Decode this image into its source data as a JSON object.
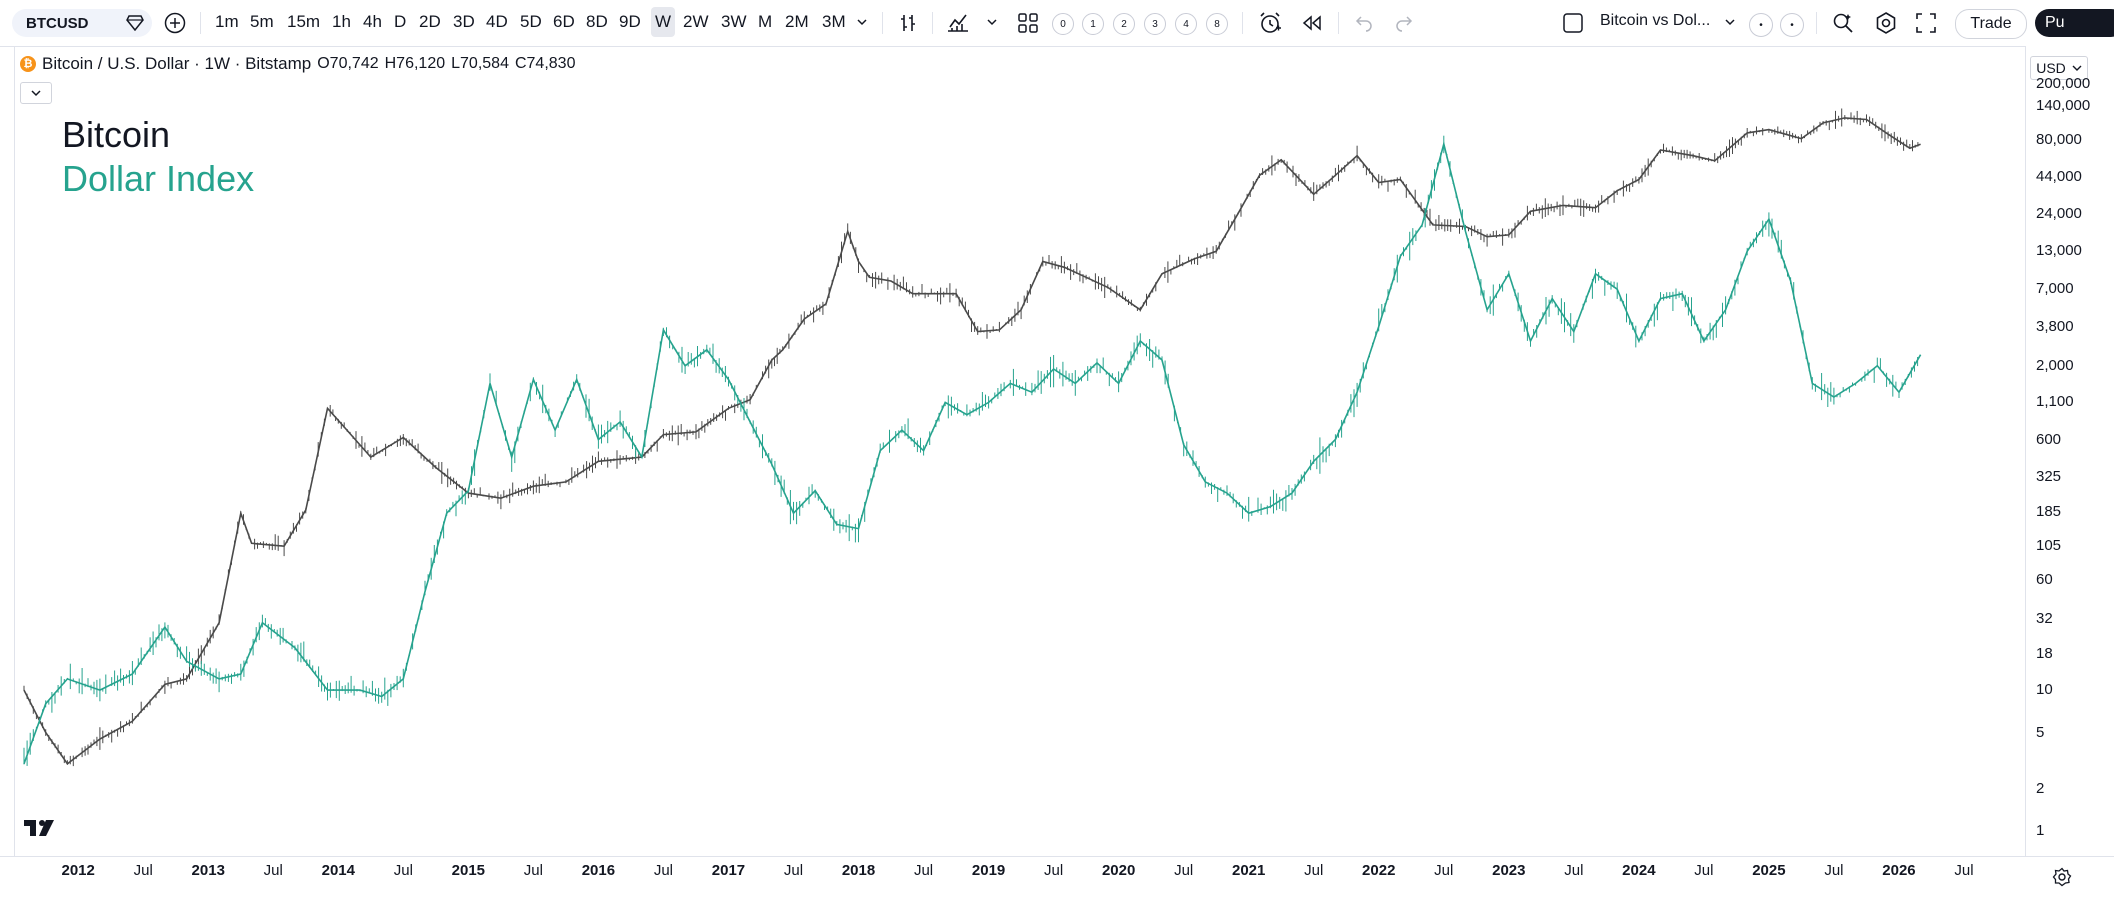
{
  "toolbar": {
    "symbol": "BTCUSD",
    "intervals": [
      "1m",
      "5m",
      "15m",
      "1h",
      "4h",
      "D",
      "2D",
      "3D",
      "4D",
      "5D",
      "6D",
      "8D",
      "9D",
      "W",
      "2W",
      "3W",
      "M",
      "2M",
      "3M"
    ],
    "active_interval": "W",
    "layout_counts": [
      "0",
      "1",
      "2",
      "3",
      "4",
      "8"
    ],
    "layout_name": "Bitcoin vs Dol...",
    "trade_label": "Trade",
    "publish_label": "Pu"
  },
  "legend": {
    "title": "Bitcoin / U.S. Dollar · 1W · Bitstamp",
    "open": "O70,742",
    "high": "H76,120",
    "low": "L70,584",
    "close": "C74,830",
    "logo_letter": "₿"
  },
  "annotations": {
    "btc_label": "Bitcoin",
    "dxy_label": "Dollar Index"
  },
  "currency": "USD",
  "colors": {
    "bitcoin_series": "#4a4a4a",
    "dollar_series": "#26a38e",
    "background": "#ffffff"
  },
  "chart_data": {
    "type": "line",
    "title": "",
    "scale": "log",
    "y_tick_labels": [
      "200,000",
      "140,000",
      "80,000",
      "44,000",
      "24,000",
      "13,000",
      "7,000",
      "3,800",
      "2,000",
      "1,100",
      "600",
      "325",
      "185",
      "105",
      "60",
      "32",
      "18",
      "10",
      "5",
      "2",
      "1"
    ],
    "x_tick_labels": [
      "2012",
      "Jul",
      "2013",
      "Jul",
      "2014",
      "Jul",
      "2015",
      "Jul",
      "2016",
      "Jul",
      "2017",
      "Jul",
      "2018",
      "Jul",
      "2019",
      "Jul",
      "2020",
      "Jul",
      "2021",
      "Jul",
      "2022",
      "Jul",
      "2023",
      "Jul",
      "2024",
      "Jul",
      "2025",
      "Jul",
      "2026",
      "Jul"
    ],
    "x_range": [
      "2011-08",
      "2026-07"
    ],
    "ylim": [
      1,
      200000
    ],
    "series": [
      {
        "name": "Bitcoin",
        "x": [
          "2011-08",
          "2011-10",
          "2011-12",
          "2012-03",
          "2012-06",
          "2012-09",
          "2012-11",
          "2013-02",
          "2013-04",
          "2013-05",
          "2013-08",
          "2013-10",
          "2013-12",
          "2014-01",
          "2014-04",
          "2014-07",
          "2014-10",
          "2015-01",
          "2015-04",
          "2015-07",
          "2015-10",
          "2016-01",
          "2016-05",
          "2016-07",
          "2016-10",
          "2017-01",
          "2017-03",
          "2017-05",
          "2017-06",
          "2017-08",
          "2017-10",
          "2017-12",
          "2018-01",
          "2018-02",
          "2018-04",
          "2018-06",
          "2018-08",
          "2018-10",
          "2018-12",
          "2019-02",
          "2019-04",
          "2019-06",
          "2019-08",
          "2019-10",
          "2019-12",
          "2020-03",
          "2020-05",
          "2020-08",
          "2020-10",
          "2020-12",
          "2021-02",
          "2021-04",
          "2021-07",
          "2021-09",
          "2021-11",
          "2022-01",
          "2022-03",
          "2022-06",
          "2022-09",
          "2022-11",
          "2023-01",
          "2023-03",
          "2023-06",
          "2023-09",
          "2023-11",
          "2024-01",
          "2024-03",
          "2024-06",
          "2024-08",
          "2024-11",
          "2025-01",
          "2025-04",
          "2025-06",
          "2025-08",
          "2025-10",
          "2025-12",
          "2026-02",
          "2026-03"
        ],
        "values": [
          10,
          5,
          3,
          4.5,
          6,
          11,
          12,
          30,
          180,
          110,
          105,
          190,
          1000,
          820,
          450,
          620,
          380,
          250,
          230,
          280,
          300,
          420,
          450,
          650,
          680,
          1000,
          1150,
          2200,
          2600,
          4300,
          5500,
          18000,
          11000,
          8500,
          8000,
          6500,
          6500,
          6500,
          3500,
          3600,
          5000,
          11000,
          10000,
          8500,
          7200,
          5000,
          9000,
          11500,
          13000,
          24000,
          45000,
          58000,
          33000,
          45000,
          62000,
          40000,
          42000,
          20000,
          19500,
          16500,
          17000,
          25000,
          27500,
          26500,
          35000,
          42000,
          68000,
          62000,
          57000,
          90000,
          95000,
          82000,
          106000,
          115000,
          112000,
          88000,
          70000,
          74830
        ]
      },
      {
        "name": "Dollar Index",
        "x": [
          "2011-08",
          "2011-10",
          "2011-12",
          "2012-03",
          "2012-06",
          "2012-09",
          "2012-11",
          "2013-02",
          "2013-04",
          "2013-06",
          "2013-09",
          "2013-12",
          "2014-03",
          "2014-05",
          "2014-07",
          "2014-09",
          "2014-11",
          "2015-01",
          "2015-03",
          "2015-05",
          "2015-07",
          "2015-09",
          "2015-11",
          "2016-01",
          "2016-03",
          "2016-05",
          "2016-07",
          "2016-09",
          "2016-11",
          "2017-01",
          "2017-03",
          "2017-05",
          "2017-07",
          "2017-09",
          "2017-11",
          "2018-01",
          "2018-03",
          "2018-05",
          "2018-07",
          "2018-09",
          "2018-11",
          "2019-01",
          "2019-03",
          "2019-05",
          "2019-07",
          "2019-09",
          "2019-11",
          "2020-01",
          "2020-03",
          "2020-05",
          "2020-07",
          "2020-09",
          "2020-11",
          "2021-01",
          "2021-03",
          "2021-05",
          "2021-07",
          "2021-09",
          "2021-11",
          "2022-01",
          "2022-03",
          "2022-05",
          "2022-07",
          "2022-09",
          "2022-11",
          "2023-01",
          "2023-03",
          "2023-05",
          "2023-07",
          "2023-09",
          "2023-11",
          "2024-01",
          "2024-03",
          "2024-05",
          "2024-07",
          "2024-09",
          "2024-11",
          "2025-01",
          "2025-03",
          "2025-05",
          "2025-07",
          "2025-09",
          "2025-11",
          "2026-01",
          "2026-03"
        ],
        "values": [
          3,
          8,
          12,
          10,
          13,
          28,
          16,
          12,
          13,
          30,
          20,
          10,
          10,
          9,
          12,
          50,
          180,
          260,
          1500,
          450,
          1600,
          700,
          1600,
          600,
          800,
          450,
          3600,
          2000,
          2600,
          1600,
          800,
          400,
          180,
          260,
          150,
          140,
          500,
          700,
          500,
          1100,
          900,
          1100,
          1500,
          1300,
          1900,
          1500,
          2100,
          1500,
          3000,
          2200,
          550,
          300,
          250,
          180,
          200,
          250,
          420,
          600,
          1300,
          3800,
          12000,
          20000,
          75000,
          18000,
          5000,
          9000,
          3000,
          6000,
          3500,
          9000,
          7000,
          3000,
          6000,
          6500,
          3000,
          5000,
          13000,
          22000,
          8000,
          1500,
          1200,
          1500,
          2000,
          1300,
          2400
        ]
      }
    ]
  }
}
